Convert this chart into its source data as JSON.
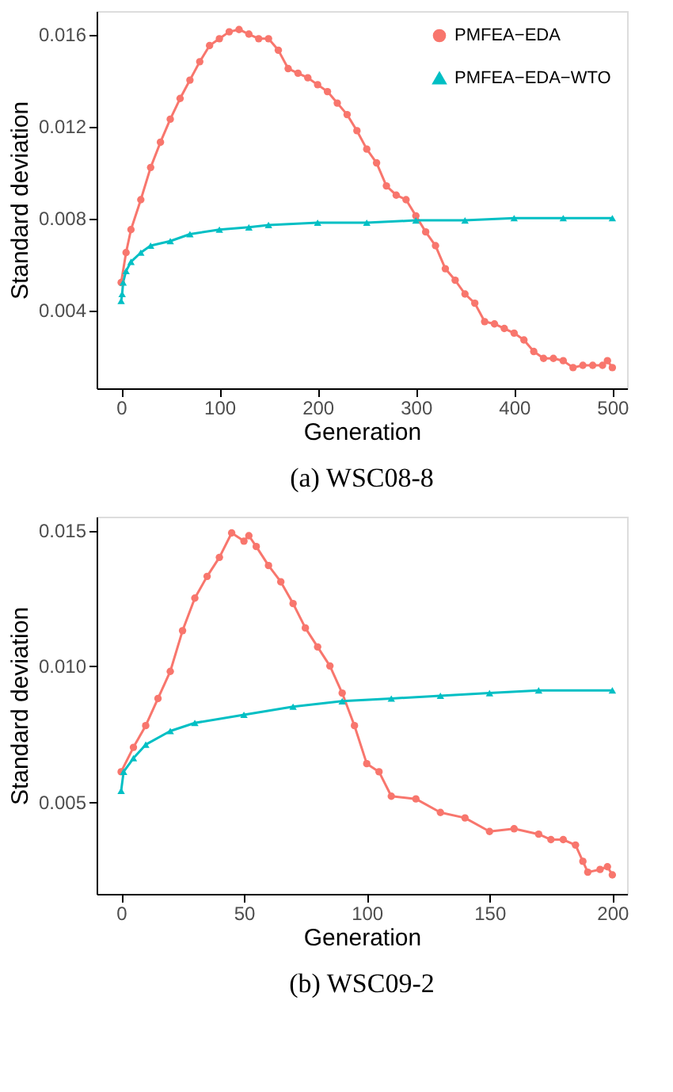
{
  "chart_data": [
    {
      "type": "line",
      "title": "(a) WSC08-8",
      "xlabel": "Generation",
      "ylabel": "Standard deviation",
      "xlim": [
        -25,
        515
      ],
      "ylim": [
        0.0006,
        0.017
      ],
      "xticks": [
        0,
        100,
        200,
        300,
        400,
        500
      ],
      "yticks": [
        0.004,
        0.008,
        0.012,
        0.016
      ],
      "grid": false,
      "legend": "top right",
      "series": [
        {
          "name": "PMFEA−EDA",
          "color": "#f8766d",
          "marker": "circle",
          "x": [
            0,
            5,
            10,
            20,
            30,
            40,
            50,
            60,
            70,
            80,
            90,
            100,
            110,
            120,
            130,
            140,
            150,
            160,
            170,
            180,
            190,
            200,
            210,
            220,
            230,
            240,
            250,
            260,
            270,
            280,
            290,
            300,
            310,
            320,
            330,
            340,
            350,
            360,
            370,
            380,
            390,
            400,
            410,
            420,
            430,
            440,
            450,
            460,
            470,
            480,
            490,
            495,
            500
          ],
          "values": [
            0.0052,
            0.0065,
            0.0075,
            0.0088,
            0.0102,
            0.0113,
            0.0123,
            0.0132,
            0.014,
            0.0148,
            0.0155,
            0.0158,
            0.0161,
            0.0162,
            0.016,
            0.0158,
            0.0158,
            0.0153,
            0.0145,
            0.0143,
            0.0141,
            0.0138,
            0.0135,
            0.013,
            0.0125,
            0.0118,
            0.011,
            0.0104,
            0.0094,
            0.009,
            0.0088,
            0.0081,
            0.0074,
            0.0068,
            0.0058,
            0.0053,
            0.0047,
            0.0043,
            0.0035,
            0.0034,
            0.0032,
            0.003,
            0.0027,
            0.0022,
            0.0019,
            0.0019,
            0.0018,
            0.0015,
            0.0016,
            0.0016,
            0.0016,
            0.0018,
            0.0015
          ]
        },
        {
          "name": "PMFEA−EDA−WTO",
          "color": "#00bfc4",
          "marker": "triangle",
          "x": [
            0,
            1,
            2,
            5,
            10,
            20,
            30,
            50,
            70,
            100,
            130,
            150,
            200,
            250,
            300,
            350,
            400,
            450,
            500
          ],
          "values": [
            0.0044,
            0.0047,
            0.0052,
            0.0057,
            0.0061,
            0.0065,
            0.0068,
            0.007,
            0.0073,
            0.0075,
            0.0076,
            0.0077,
            0.0078,
            0.0078,
            0.0079,
            0.0079,
            0.008,
            0.008,
            0.008
          ]
        }
      ]
    },
    {
      "type": "line",
      "title": "(b) WSC09-2",
      "xlabel": "Generation",
      "ylabel": "Standard deviation",
      "xlim": [
        -10,
        206
      ],
      "ylim": [
        0.0016,
        0.0155
      ],
      "xticks": [
        0,
        50,
        100,
        150,
        200
      ],
      "yticks": [
        0.005,
        {
          "value": 0.01,
          "label": "0.010"
        },
        0.015
      ],
      "grid": false,
      "legend": "top right",
      "series": [
        {
          "name": "PMFEA−EDA",
          "color": "#f8766d",
          "marker": "circle",
          "x": [
            0,
            5,
            10,
            15,
            20,
            25,
            30,
            35,
            40,
            45,
            50,
            52,
            55,
            60,
            65,
            70,
            75,
            80,
            85,
            90,
            95,
            100,
            105,
            110,
            120,
            130,
            140,
            150,
            160,
            170,
            175,
            180,
            185,
            188,
            190,
            195,
            198,
            200
          ],
          "values": [
            0.0061,
            0.007,
            0.0078,
            0.0088,
            0.0098,
            0.0113,
            0.0125,
            0.0133,
            0.014,
            0.0149,
            0.0146,
            0.0148,
            0.0144,
            0.0137,
            0.0131,
            0.0123,
            0.0114,
            0.0107,
            0.01,
            0.009,
            0.0078,
            0.0064,
            0.0061,
            0.0052,
            0.0051,
            0.0046,
            0.0044,
            0.0039,
            0.004,
            0.0038,
            0.0036,
            0.0036,
            0.0034,
            0.0028,
            0.0024,
            0.0025,
            0.0026,
            0.0023
          ]
        },
        {
          "name": "PMFEA−EDA−WTO",
          "color": "#00bfc4",
          "marker": "triangle",
          "x": [
            0,
            1,
            5,
            10,
            20,
            30,
            50,
            70,
            90,
            110,
            130,
            150,
            170,
            200
          ],
          "values": [
            0.0054,
            0.0061,
            0.0066,
            0.0071,
            0.0076,
            0.0079,
            0.0082,
            0.0085,
            0.0087,
            0.0088,
            0.0089,
            0.009,
            0.0091,
            0.0091
          ]
        }
      ]
    }
  ]
}
